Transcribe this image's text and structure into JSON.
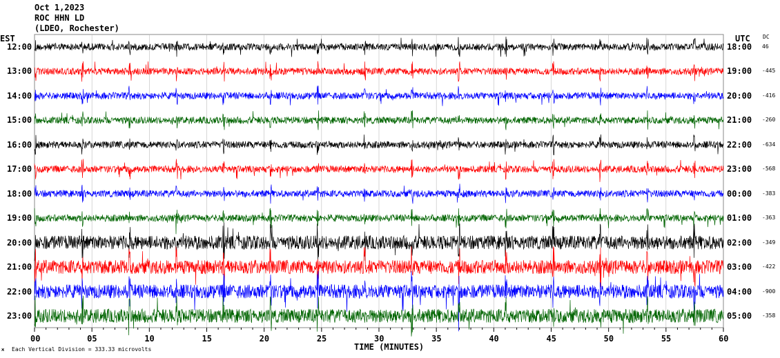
{
  "chart_data": {
    "type": "line",
    "title_lines": [
      "Oct 1,2023",
      "ROC HHN LD",
      "(LDEO, Rochester)"
    ],
    "left_timezone": "EST",
    "right_timezone": "UTC",
    "dc_header": "DC",
    "xlabel": "TIME (MINUTES)",
    "xlim": [
      0,
      60
    ],
    "x_ticks": [
      "00",
      "05",
      "10",
      "15",
      "20",
      "25",
      "30",
      "35",
      "40",
      "45",
      "50",
      "55",
      "60"
    ],
    "scale_note": "Each Vertical Division =  333.33 microvolts",
    "footer_mark": "ж",
    "trace_colors": [
      "#000000",
      "#ff0000",
      "#0000ff",
      "#006400"
    ],
    "traces": [
      {
        "est": "12:00",
        "utc": "18:00",
        "dc": "46"
      },
      {
        "est": "13:00",
        "utc": "19:00",
        "dc": "-445"
      },
      {
        "est": "14:00",
        "utc": "20:00",
        "dc": "-416"
      },
      {
        "est": "15:00",
        "utc": "21:00",
        "dc": "-260"
      },
      {
        "est": "16:00",
        "utc": "22:00",
        "dc": "-634"
      },
      {
        "est": "17:00",
        "utc": "23:00",
        "dc": "-568"
      },
      {
        "est": "18:00",
        "utc": "00:00",
        "dc": "-383"
      },
      {
        "est": "19:00",
        "utc": "01:00",
        "dc": "-363"
      },
      {
        "est": "20:00",
        "utc": "02:00",
        "dc": "-349"
      },
      {
        "est": "21:00",
        "utc": "03:00",
        "dc": "-422"
      },
      {
        "est": "22:00",
        "utc": "04:00",
        "dc": "-900"
      },
      {
        "est": "23:00",
        "utc": "05:00",
        "dc": "-358"
      }
    ]
  }
}
